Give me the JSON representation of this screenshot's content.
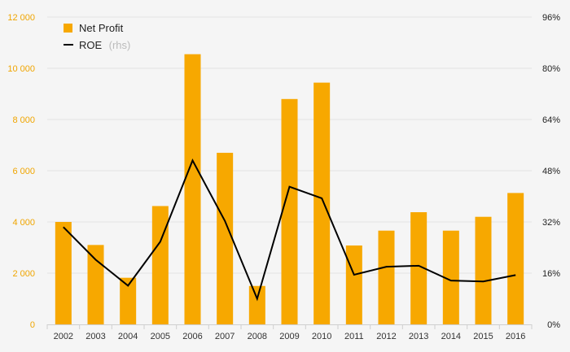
{
  "chart_data": {
    "type": "bar",
    "categories": [
      "2002",
      "2003",
      "2004",
      "2005",
      "2006",
      "2007",
      "2008",
      "2009",
      "2010",
      "2011",
      "2012",
      "2013",
      "2014",
      "2015",
      "2016"
    ],
    "series": [
      {
        "name": "Net Profit",
        "type": "bar",
        "axis": "left",
        "color": "#f7a800",
        "values": [
          4000,
          3100,
          1820,
          4620,
          10550,
          6700,
          1500,
          8800,
          9440,
          3080,
          3660,
          4380,
          3660,
          4200,
          5130
        ]
      },
      {
        "name": "ROE",
        "type": "line",
        "axis": "right",
        "color": "#000000",
        "values": [
          30.4,
          20.2,
          12.1,
          25.8,
          51.2,
          32.3,
          8.0,
          43.0,
          39.4,
          15.5,
          18.0,
          18.3,
          13.7,
          13.4,
          15.4
        ]
      }
    ],
    "legend": {
      "bar_label": "Net Profit",
      "line_label": "ROE",
      "line_suffix": "(rhs)"
    },
    "left_axis": {
      "ylim": [
        0,
        12000
      ],
      "ticks": [
        0,
        2000,
        4000,
        6000,
        8000,
        10000,
        12000
      ],
      "tick_labels": [
        "0",
        "2 000",
        "4 000",
        "6 000",
        "8 000",
        "10 000",
        "12 000"
      ],
      "color": "#f0a500"
    },
    "right_axis": {
      "ylim": [
        0,
        96
      ],
      "ticks": [
        0,
        16,
        32,
        48,
        64,
        80,
        96
      ],
      "tick_labels": [
        "0%",
        "16%",
        "32%",
        "48%",
        "64%",
        "80%",
        "96%"
      ]
    },
    "grid": true,
    "legend_position": "top-left",
    "title": "",
    "xlabel": "",
    "ylabel": ""
  }
}
